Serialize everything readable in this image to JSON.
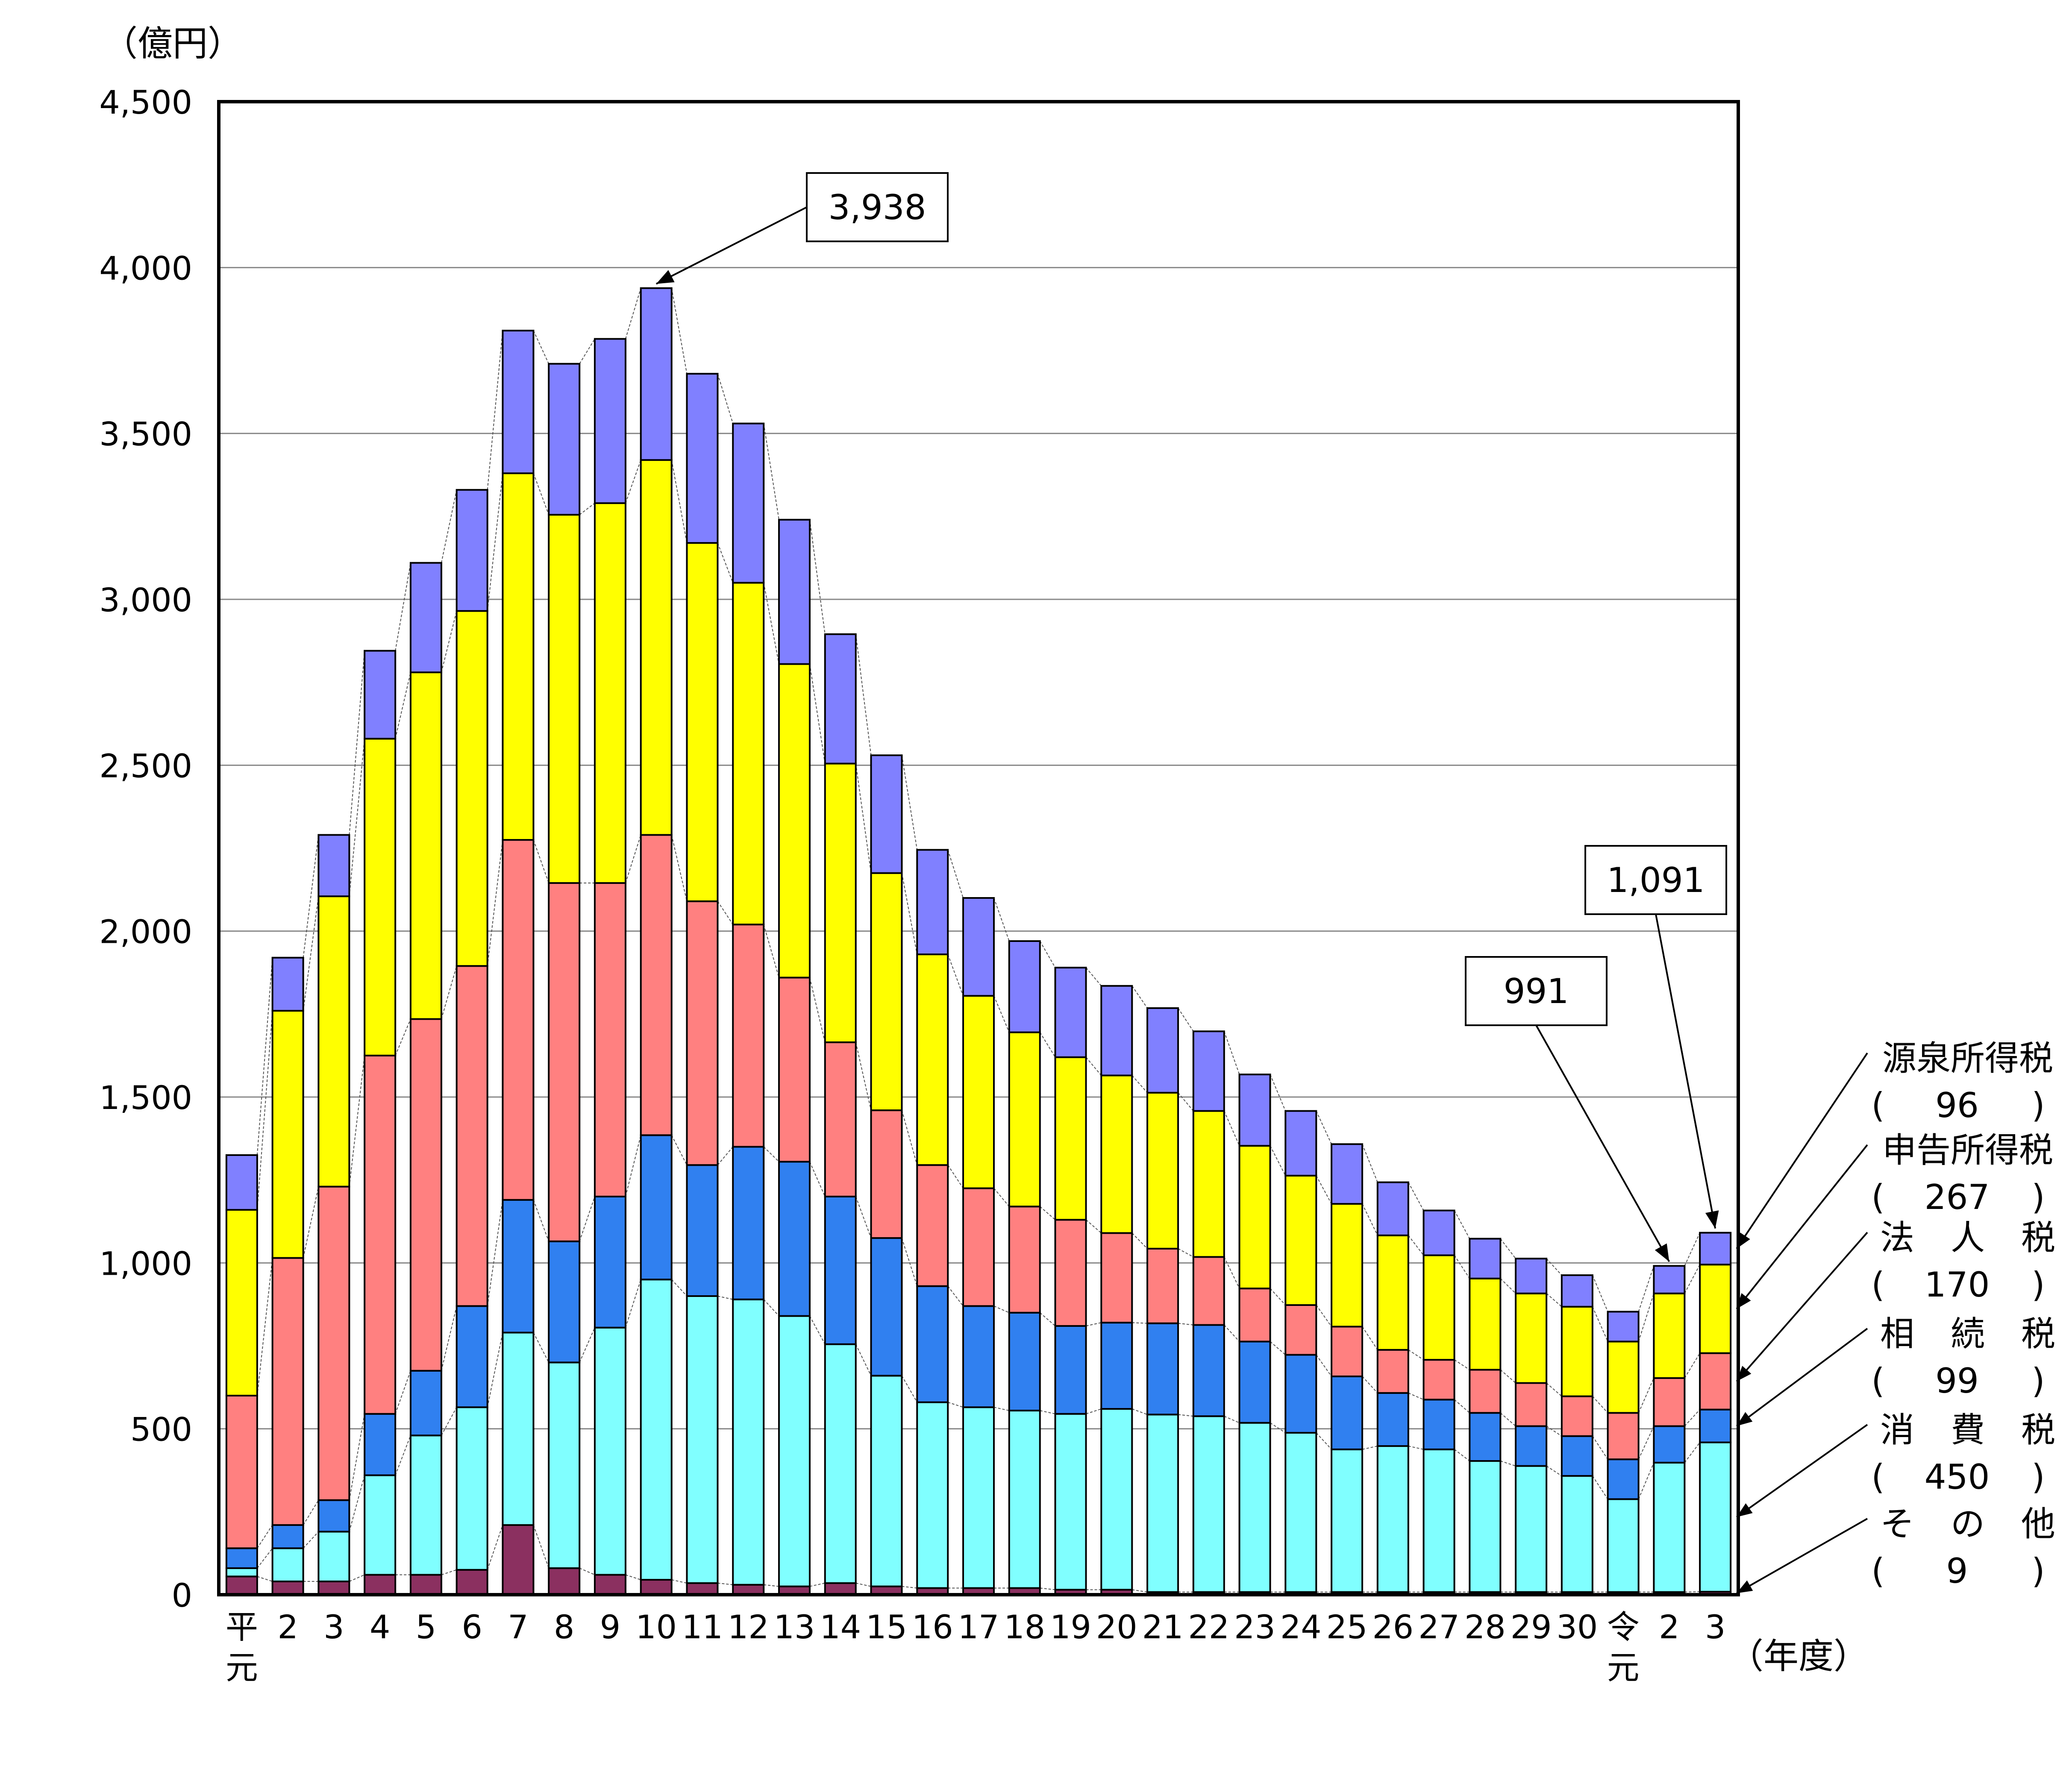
{
  "chart_data": {
    "type": "bar",
    "stacked": true,
    "y_unit_label": "（億円）",
    "x_unit_label": "（年度）",
    "ylim": [
      0,
      4500
    ],
    "y_ticks": [
      "0",
      "500",
      "1,000",
      "1,500",
      "2,000",
      "2,500",
      "3,000",
      "3,500",
      "4,000",
      "4,500"
    ],
    "y_tick_values": [
      0,
      500,
      1000,
      1500,
      2000,
      2500,
      3000,
      3500,
      4000,
      4500
    ],
    "grid": true,
    "categories": [
      [
        "平",
        "元"
      ],
      [
        "2"
      ],
      [
        "3"
      ],
      [
        "4"
      ],
      [
        "5"
      ],
      [
        "6"
      ],
      [
        "7"
      ],
      [
        "8"
      ],
      [
        "9"
      ],
      [
        "10"
      ],
      [
        "11"
      ],
      [
        "12"
      ],
      [
        "13"
      ],
      [
        "14"
      ],
      [
        "15"
      ],
      [
        "16"
      ],
      [
        "17"
      ],
      [
        "18"
      ],
      [
        "19"
      ],
      [
        "20"
      ],
      [
        "21"
      ],
      [
        "22"
      ],
      [
        "23"
      ],
      [
        "24"
      ],
      [
        "25"
      ],
      [
        "26"
      ],
      [
        "27"
      ],
      [
        "28"
      ],
      [
        "29"
      ],
      [
        "30"
      ],
      [
        "令",
        "元"
      ],
      [
        "2"
      ],
      [
        "3"
      ]
    ],
    "series": [
      {
        "name": "その他",
        "value_label": "9",
        "color": "#8B3060",
        "values": [
          55,
          40,
          40,
          60,
          60,
          75,
          210,
          80,
          60,
          45,
          35,
          30,
          25,
          35,
          25,
          20,
          20,
          20,
          15,
          15,
          8,
          8,
          8,
          8,
          8,
          8,
          8,
          8,
          8,
          8,
          8,
          8,
          9
        ]
      },
      {
        "name": "消費税",
        "value_label": "450",
        "color": "#80FFFF",
        "values": [
          25,
          100,
          150,
          300,
          420,
          490,
          580,
          620,
          745,
          905,
          865,
          860,
          815,
          720,
          635,
          560,
          545,
          535,
          530,
          545,
          535,
          530,
          510,
          480,
          430,
          440,
          430,
          395,
          380,
          350,
          280,
          390,
          450
        ]
      },
      {
        "name": "相続税",
        "value_label": "99",
        "color": "#3080F0",
        "values": [
          60,
          70,
          95,
          185,
          195,
          305,
          400,
          365,
          395,
          435,
          395,
          460,
          465,
          445,
          415,
          350,
          305,
          295,
          265,
          260,
          275,
          275,
          245,
          235,
          220,
          160,
          150,
          145,
          120,
          120,
          120,
          110,
          99
        ]
      },
      {
        "name": "法人税",
        "value_label": "170",
        "color": "#FF8080",
        "values": [
          460,
          805,
          945,
          1080,
          1060,
          1025,
          1085,
          1080,
          945,
          905,
          795,
          670,
          555,
          465,
          385,
          365,
          355,
          320,
          320,
          270,
          225,
          205,
          160,
          150,
          150,
          130,
          120,
          130,
          130,
          120,
          140,
          145,
          170
        ]
      },
      {
        "name": "申告所得税",
        "value_label": "267",
        "color": "#FFFF00",
        "values": [
          560,
          745,
          875,
          955,
          1045,
          1070,
          1105,
          1110,
          1145,
          1130,
          1080,
          1030,
          945,
          840,
          715,
          635,
          580,
          525,
          490,
          475,
          470,
          440,
          430,
          390,
          370,
          345,
          315,
          275,
          270,
          270,
          215,
          255,
          267
        ]
      },
      {
        "name": "源泉所得税",
        "value_label": "96",
        "color": "#8080FF",
        "values": [
          165,
          160,
          185,
          265,
          330,
          365,
          430,
          455,
          495,
          518,
          510,
          480,
          435,
          390,
          355,
          315,
          295,
          275,
          270,
          270,
          255,
          240,
          215,
          195,
          180,
          160,
          135,
          120,
          105,
          95,
          90,
          83,
          96
        ]
      }
    ],
    "annotations": [
      {
        "text": "3,938",
        "category_index": 9,
        "value": 3938
      },
      {
        "text": "991",
        "category_index": 31,
        "value": 991
      },
      {
        "text": "1,091",
        "category_index": 32,
        "value": 1091
      }
    ],
    "legend_placement": "right"
  }
}
